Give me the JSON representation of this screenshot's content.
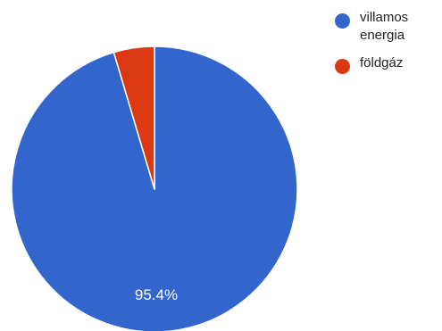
{
  "chart_data": {
    "type": "pie",
    "title": "",
    "series": [
      {
        "name": "villamos energia",
        "value": 95.4,
        "color": "#3366cc",
        "data_label": "95.4%"
      },
      {
        "name": "földgáz",
        "value": 4.6,
        "color": "#dc3912",
        "data_label": ""
      }
    ],
    "legend_position": "right",
    "start": "top, clockwise"
  }
}
